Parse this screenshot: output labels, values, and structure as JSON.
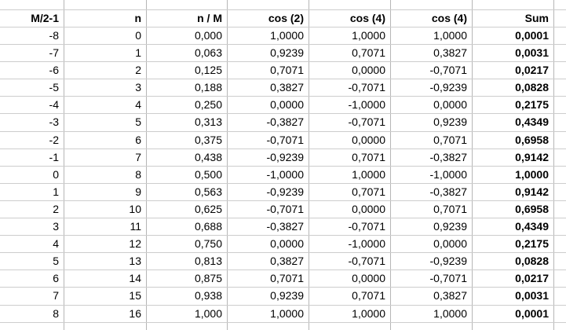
{
  "table": {
    "headers": [
      "M/2-1",
      "n",
      "n / M",
      "cos (2)",
      "cos (4)",
      "cos (4)",
      "Sum"
    ],
    "rows": [
      [
        "-8",
        "0",
        "0,000",
        "1,0000",
        "1,0000",
        "1,0000",
        "0,0001"
      ],
      [
        "-7",
        "1",
        "0,063",
        "0,9239",
        "0,7071",
        "0,3827",
        "0,0031"
      ],
      [
        "-6",
        "2",
        "0,125",
        "0,7071",
        "0,0000",
        "-0,7071",
        "0,0217"
      ],
      [
        "-5",
        "3",
        "0,188",
        "0,3827",
        "-0,7071",
        "-0,9239",
        "0,0828"
      ],
      [
        "-4",
        "4",
        "0,250",
        "0,0000",
        "-1,0000",
        "0,0000",
        "0,2175"
      ],
      [
        "-3",
        "5",
        "0,313",
        "-0,3827",
        "-0,7071",
        "0,9239",
        "0,4349"
      ],
      [
        "-2",
        "6",
        "0,375",
        "-0,7071",
        "0,0000",
        "0,7071",
        "0,6958"
      ],
      [
        "-1",
        "7",
        "0,438",
        "-0,9239",
        "0,7071",
        "-0,3827",
        "0,9142"
      ],
      [
        "0",
        "8",
        "0,500",
        "-1,0000",
        "1,0000",
        "-1,0000",
        "1,0000"
      ],
      [
        "1",
        "9",
        "0,563",
        "-0,9239",
        "0,7071",
        "-0,3827",
        "0,9142"
      ],
      [
        "2",
        "10",
        "0,625",
        "-0,7071",
        "0,0000",
        "0,7071",
        "0,6958"
      ],
      [
        "3",
        "11",
        "0,688",
        "-0,3827",
        "-0,7071",
        "0,9239",
        "0,4349"
      ],
      [
        "4",
        "12",
        "0,750",
        "0,0000",
        "-1,0000",
        "0,0000",
        "0,2175"
      ],
      [
        "5",
        "13",
        "0,813",
        "0,3827",
        "-0,7071",
        "-0,9239",
        "0,0828"
      ],
      [
        "6",
        "14",
        "0,875",
        "0,7071",
        "0,0000",
        "-0,7071",
        "0,0217"
      ],
      [
        "7",
        "15",
        "0,938",
        "0,9239",
        "0,7071",
        "0,3827",
        "0,0031"
      ],
      [
        "8",
        "16",
        "1,000",
        "1,0000",
        "1,0000",
        "1,0000",
        "0,0001"
      ]
    ]
  },
  "style": {
    "background": "#ffffff",
    "text_color": "#000000",
    "gridline_vertical": "#b6b6b6",
    "gridline_horizontal": "#cdcdcd",
    "decimal_separator": ","
  }
}
